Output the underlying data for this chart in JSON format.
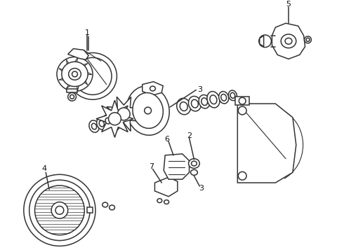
{
  "bg_color": "#ffffff",
  "line_color": "#333333",
  "lw": 1.1,
  "fig_width": 4.9,
  "fig_height": 3.6,
  "dpi": 100
}
